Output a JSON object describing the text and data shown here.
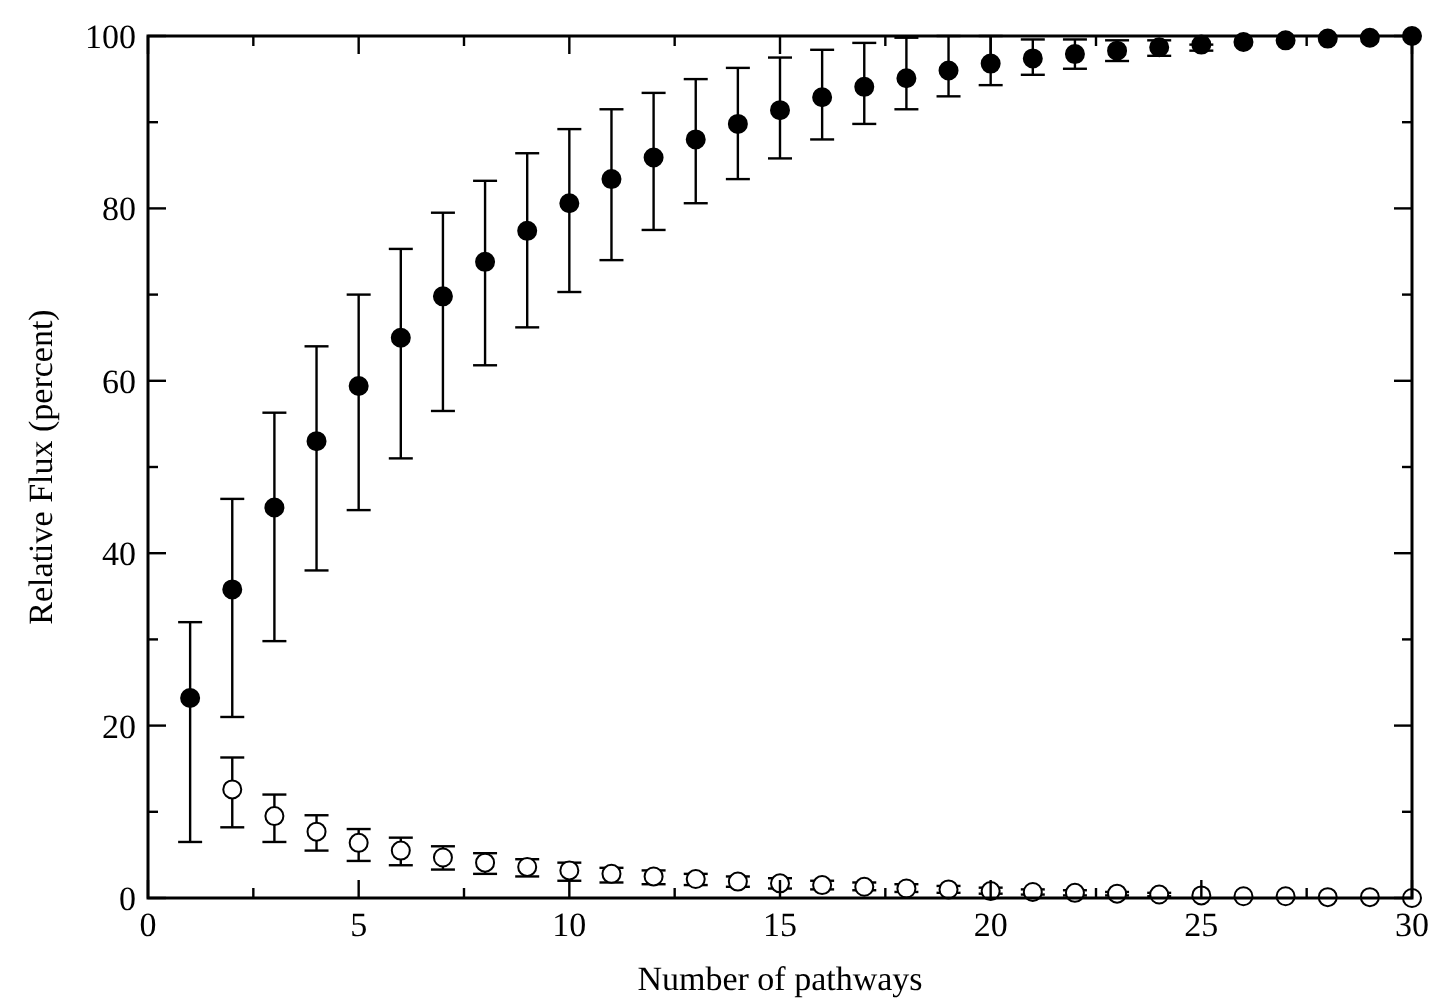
{
  "chart_data": {
    "type": "scatter",
    "xlabel": "Number of pathways",
    "ylabel": "Relative Flux (percent)",
    "xlim": [
      0,
      30
    ],
    "ylim": [
      0,
      100
    ],
    "xticks": [
      0,
      {
        "value": 2.5,
        "label": null
      },
      5,
      {
        "value": 7.5,
        "label": null
      },
      10,
      {
        "value": 12.5,
        "label": null
      },
      15,
      {
        "value": 17.5,
        "label": null
      },
      20,
      {
        "value": 22.5,
        "label": null
      },
      25,
      {
        "value": 27.5,
        "label": null
      },
      30
    ],
    "yticks": [
      0,
      {
        "value": 10,
        "label": null
      },
      20,
      {
        "value": 30,
        "label": null
      },
      40,
      {
        "value": 50,
        "label": null
      },
      60,
      {
        "value": 70,
        "label": null
      },
      80,
      {
        "value": 90,
        "label": null
      },
      100
    ],
    "grid": false,
    "marker": "circle",
    "series": [
      {
        "color": "#000000",
        "x": [
          1,
          2,
          3,
          4,
          5,
          6,
          7,
          8,
          9,
          10,
          11,
          12,
          13,
          14,
          15,
          16,
          17,
          18,
          19,
          20,
          21,
          22,
          23,
          24,
          25,
          26,
          27,
          28,
          29,
          30
        ],
        "values": [
          23.2,
          35.8,
          45.3,
          53,
          59.4,
          65,
          69.8,
          73.8,
          77.4,
          80.6,
          83.4,
          85.9,
          88,
          89.8,
          91.4,
          92.9,
          94.1,
          95.1,
          96,
          96.8,
          97.4,
          97.9,
          98.3,
          98.7,
          99,
          99.3,
          99.5,
          99.7,
          99.8,
          100
        ],
        "errors": [
          [
            6.5,
            32
          ],
          [
            21,
            46.3
          ],
          [
            29.8,
            56.3
          ],
          [
            38,
            64
          ],
          [
            45,
            70
          ],
          [
            51,
            75.3
          ],
          [
            56.5,
            79.5
          ],
          [
            61.8,
            83.2
          ],
          [
            66.2,
            86.4
          ],
          [
            70.3,
            89.2
          ],
          [
            74,
            91.5
          ],
          [
            77.5,
            93.4
          ],
          [
            80.6,
            95
          ],
          [
            83.4,
            96.3
          ],
          [
            85.8,
            97.5
          ],
          [
            88,
            98.4
          ],
          [
            89.8,
            99.2
          ],
          [
            91.5,
            99.8
          ],
          [
            93,
            100
          ],
          [
            94.3,
            100
          ],
          [
            95.5,
            99.6
          ],
          [
            96.2,
            99.6
          ],
          [
            97.1,
            99.5
          ],
          [
            97.7,
            99.5
          ],
          [
            98.3,
            99
          ],
          null,
          null,
          null,
          null,
          null
        ]
      },
      {
        "color": "#000000",
        "x": [
          2,
          3,
          4,
          5,
          6,
          7,
          8,
          9,
          10,
          11,
          12,
          13,
          14,
          15,
          16,
          17,
          18,
          19,
          20,
          21,
          22,
          23,
          24,
          25,
          26,
          27,
          28,
          29,
          30
        ],
        "values": [
          12.6,
          9.5,
          7.7,
          6.4,
          5.5,
          4.7,
          4.1,
          3.6,
          3.2,
          2.8,
          2.5,
          2.2,
          1.9,
          1.7,
          1.5,
          1.3,
          1.1,
          1,
          0.8,
          0.7,
          0.6,
          0.5,
          0.4,
          0.3,
          0.2,
          0.2,
          0.1,
          0.1,
          0
        ],
        "errors": [
          [
            8.2,
            16.3
          ],
          [
            6.5,
            12
          ],
          [
            5.5,
            9.6
          ],
          [
            4.3,
            8
          ],
          [
            3.8,
            7
          ],
          [
            3.3,
            6
          ],
          [
            2.8,
            5.2
          ],
          [
            2.5,
            4.5
          ],
          [
            2,
            4.1
          ],
          [
            1.8,
            3.5
          ],
          [
            1.6,
            3.2
          ],
          [
            1.5,
            2.8
          ],
          [
            1.3,
            2.5
          ],
          [
            1.1,
            2.3
          ],
          [
            1,
            2
          ],
          [
            0.9,
            1.8
          ],
          [
            0.7,
            1.6
          ],
          [
            0.6,
            1.4
          ],
          [
            0.5,
            1.2
          ],
          [
            0.4,
            1
          ],
          [
            0.3,
            0.9
          ],
          [
            0.3,
            0.7
          ],
          [
            0.2,
            0.6
          ],
          null,
          null,
          null,
          null,
          null,
          null
        ]
      }
    ]
  }
}
